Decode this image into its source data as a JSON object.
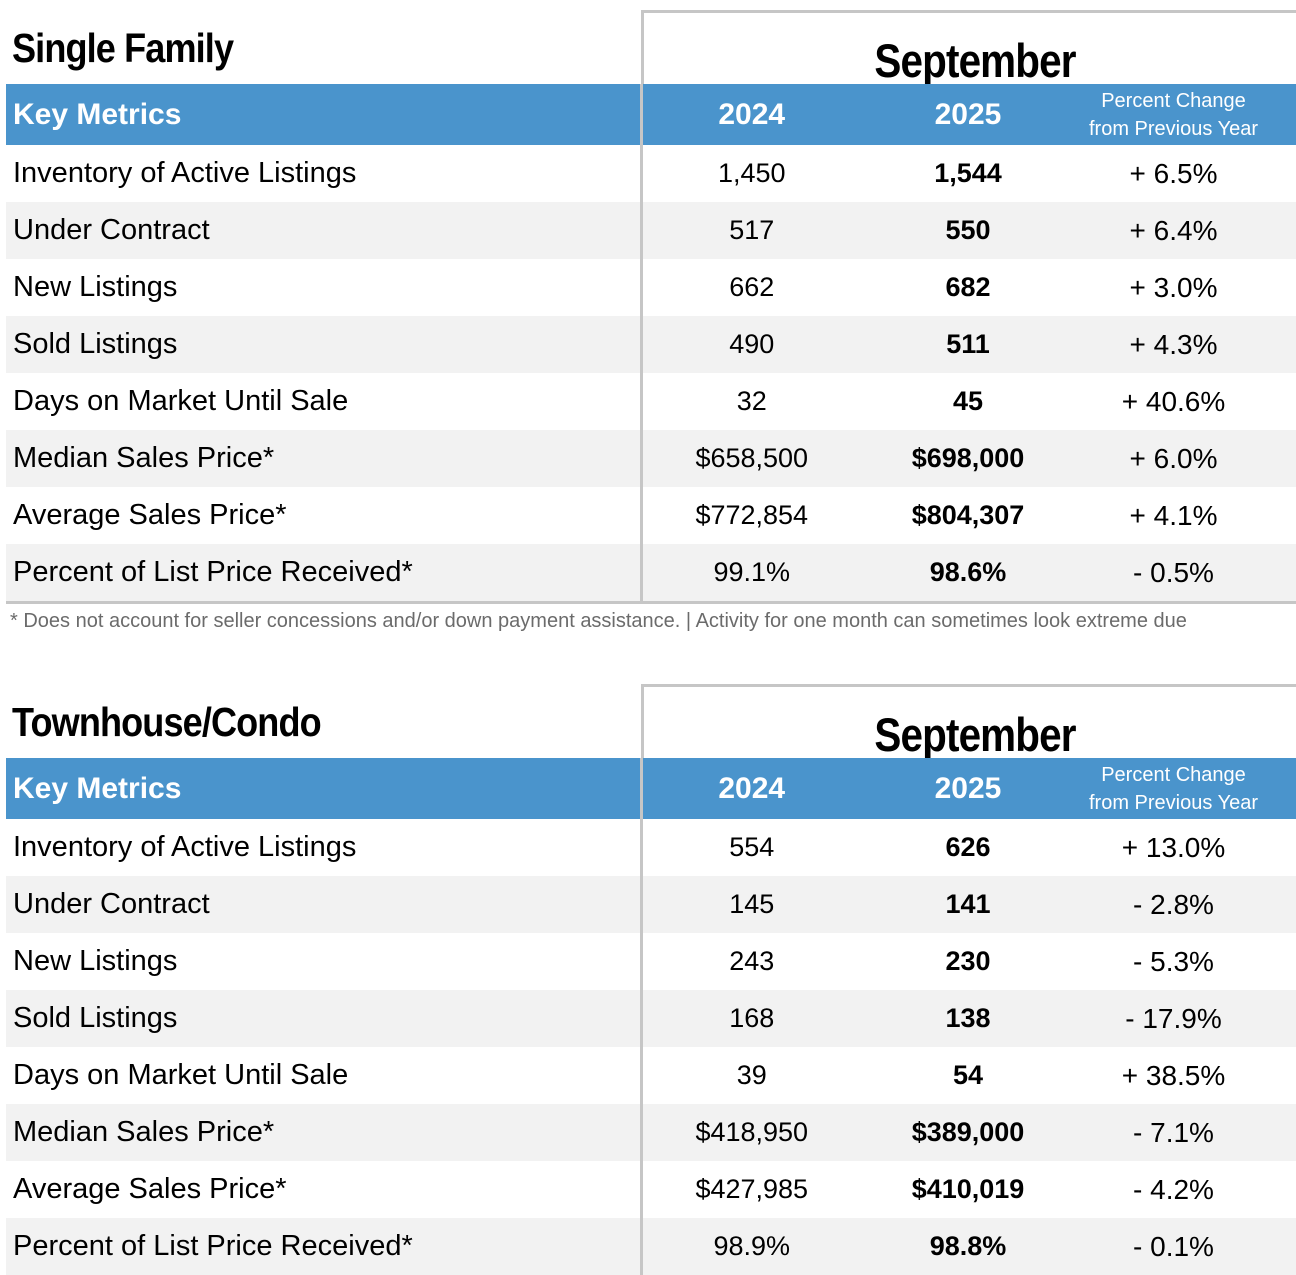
{
  "sections": [
    {
      "title": "Single Family",
      "month": "September",
      "headers": {
        "metric": "Key Metrics",
        "year1": "2024",
        "year2": "2025",
        "pct_line1": "Percent Change",
        "pct_line2": "from Previous Year"
      },
      "rows": [
        {
          "metric": "Inventory of Active Listings",
          "y1": "1,450",
          "y2": "1,544",
          "pct": "+ 6.5%"
        },
        {
          "metric": "Under Contract",
          "y1": "517",
          "y2": "550",
          "pct": "+ 6.4%"
        },
        {
          "metric": "New Listings",
          "y1": "662",
          "y2": "682",
          "pct": "+ 3.0%"
        },
        {
          "metric": "Sold Listings",
          "y1": "490",
          "y2": "511",
          "pct": "+ 4.3%"
        },
        {
          "metric": "Days on Market Until Sale",
          "y1": "32",
          "y2": "45",
          "pct": "+ 40.6%"
        },
        {
          "metric": "Median Sales Price*",
          "y1": "$658,500",
          "y2": "$698,000",
          "pct": "+ 6.0%"
        },
        {
          "metric": "Average Sales Price*",
          "y1": "$772,854",
          "y2": "$804,307",
          "pct": "+ 4.1%"
        },
        {
          "metric": "Percent of List Price Received*",
          "y1": "99.1%",
          "y2": "98.6%",
          "pct": "- 0.5%"
        }
      ],
      "footnote": "* Does not account for seller concessions and/or down payment assistance.  |  Activity for one month can sometimes look extreme due"
    },
    {
      "title": "Townhouse/Condo",
      "month": "September",
      "headers": {
        "metric": "Key Metrics",
        "year1": "2024",
        "year2": "2025",
        "pct_line1": "Percent Change",
        "pct_line2": "from Previous Year"
      },
      "rows": [
        {
          "metric": "Inventory of Active Listings",
          "y1": "554",
          "y2": "626",
          "pct": "+ 13.0%"
        },
        {
          "metric": "Under Contract",
          "y1": "145",
          "y2": "141",
          "pct": "- 2.8%"
        },
        {
          "metric": "New Listings",
          "y1": "243",
          "y2": "230",
          "pct": "- 5.3%"
        },
        {
          "metric": "Sold Listings",
          "y1": "168",
          "y2": "138",
          "pct": "- 17.9%"
        },
        {
          "metric": "Days on Market Until Sale",
          "y1": "39",
          "y2": "54",
          "pct": "+ 38.5%"
        },
        {
          "metric": "Median Sales Price*",
          "y1": "$418,950",
          "y2": "$389,000",
          "pct": "- 7.1%"
        },
        {
          "metric": "Average Sales Price*",
          "y1": "$427,985",
          "y2": "$410,019",
          "pct": "- 4.2%"
        },
        {
          "metric": "Percent of List Price Received*",
          "y1": "98.9%",
          "y2": "98.8%",
          "pct": "- 0.1%"
        }
      ]
    }
  ]
}
